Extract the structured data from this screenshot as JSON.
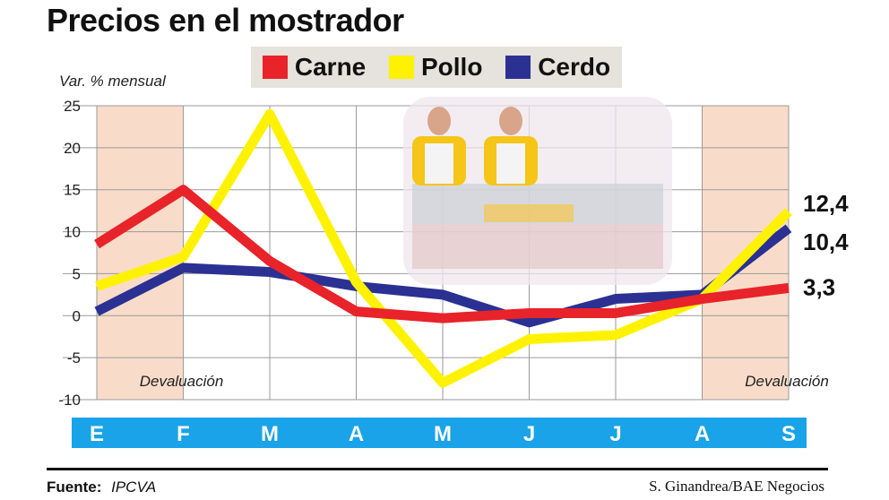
{
  "title": "Precios en el mostrador",
  "legend": [
    {
      "name": "Carne",
      "color": "#e8232a"
    },
    {
      "name": "Pollo",
      "color": "#fff200"
    },
    {
      "name": "Cerdo",
      "color": "#2b3192"
    }
  ],
  "footer": {
    "source_label": "Fuente:",
    "source_value": "IPCVA",
    "credit": "S. Ginandrea/BAE Negocios"
  },
  "chart_data": {
    "type": "line",
    "ylabel": "Var. % mensual",
    "ylim": [
      -10,
      25
    ],
    "yticks": [
      25,
      20,
      15,
      10,
      5,
      0,
      -5,
      -10
    ],
    "categories": [
      "E",
      "F",
      "M",
      "A",
      "M",
      "J",
      "J",
      "A",
      "S"
    ],
    "grid": true,
    "shaded_periods": [
      {
        "category_index": 1,
        "label": "Devaluación"
      },
      {
        "category_index": 8,
        "label": "Devaluación"
      }
    ],
    "series": [
      {
        "name": "Carne",
        "color": "#e8232a",
        "values": [
          8.5,
          15,
          6.5,
          0.5,
          -0.3,
          0.3,
          0.3,
          2,
          3.3
        ],
        "end_label": "3,3"
      },
      {
        "name": "Pollo",
        "color": "#fff200",
        "values": [
          3.5,
          7,
          24,
          4,
          -8,
          -2.8,
          -2.3,
          2,
          12.4
        ],
        "end_label": "12,4"
      },
      {
        "name": "Cerdo",
        "color": "#2b3192",
        "values": [
          0.5,
          5.7,
          5.2,
          3.5,
          2.5,
          -0.8,
          2,
          2.5,
          10.4
        ],
        "end_label": "10,4"
      }
    ]
  }
}
